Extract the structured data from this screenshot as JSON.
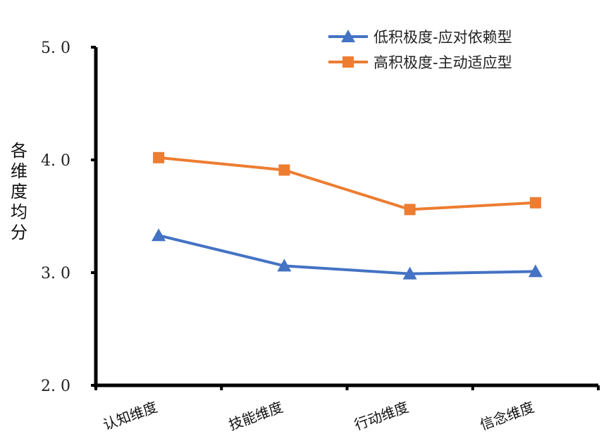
{
  "chart_data": {
    "type": "line",
    "title": "",
    "xlabel": "",
    "ylabel": "各维度均分",
    "ylim": [
      2.0,
      5.0
    ],
    "yticks": [
      "2.0",
      "3.0",
      "4.0",
      "5.0"
    ],
    "grid": false,
    "legend_position": "top-right",
    "categories": [
      "认知维度",
      "技能维度",
      "行动维度",
      "信念维度"
    ],
    "series": [
      {
        "name": "低积极度-应对依赖型",
        "marker": "triangle",
        "color": "#4472C4",
        "values": [
          3.33,
          3.06,
          2.99,
          3.01
        ]
      },
      {
        "name": "高积极度-主动适应型",
        "marker": "square",
        "color": "#ED7D31",
        "values": [
          4.02,
          3.91,
          3.56,
          3.62
        ]
      }
    ]
  }
}
